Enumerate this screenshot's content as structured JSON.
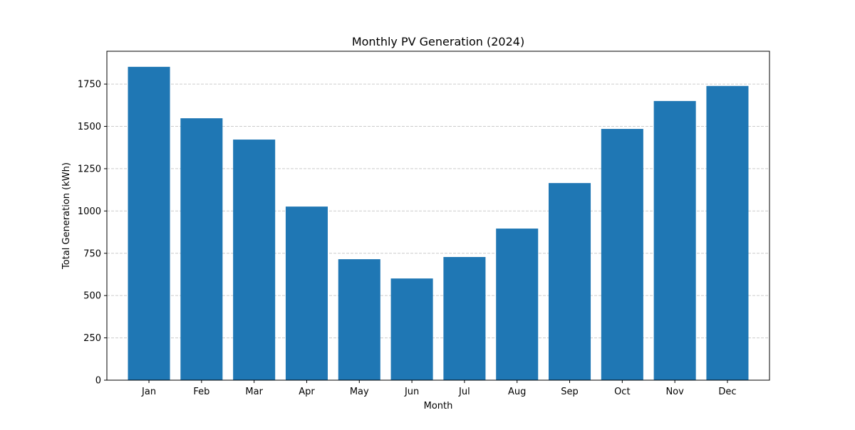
{
  "chart_data": {
    "type": "bar",
    "title": "Monthly PV Generation (2024)",
    "xlabel": "Month",
    "ylabel": "Total Generation (kWh)",
    "categories": [
      "Jan",
      "Feb",
      "Mar",
      "Apr",
      "May",
      "Jun",
      "Jul",
      "Aug",
      "Sep",
      "Oct",
      "Nov",
      "Dec"
    ],
    "values": [
      1852,
      1548,
      1422,
      1026,
      715,
      601,
      728,
      896,
      1165,
      1485,
      1650,
      1739
    ],
    "ylim": [
      0,
      1944
    ],
    "yticks": [
      0,
      250,
      500,
      750,
      1000,
      1250,
      1500,
      1750
    ],
    "grid": "y-dashed",
    "legend": "none",
    "bar_color": "#1f77b4",
    "grid_color": "#cccccc"
  }
}
